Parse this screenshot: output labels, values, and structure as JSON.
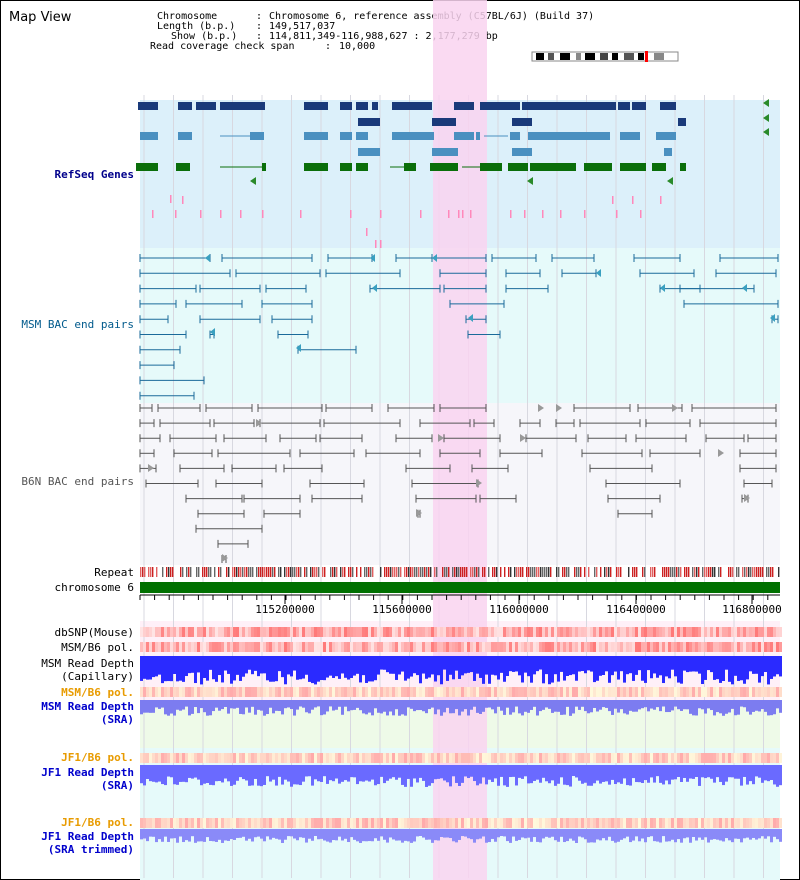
{
  "header": {
    "title": "Map View",
    "chromosome_label": "Chromosome",
    "chromosome_value": "Chromosome 6, reference assembly (C57BL/6J) (Build 37)",
    "length_label": "Length (b.p.)",
    "length_value": "149,517,037",
    "show_label": "Show (b.p.)",
    "show_value": "114,811,349-116,988,627 : 2,177,279 bp",
    "coverage_label": "Read coverage check span",
    "coverage_value": "10,000",
    "sep": ":"
  },
  "tracks": {
    "refseq": "RefSeq Genes",
    "msm_bac": "MSM BAC end pairs",
    "b6n_bac": "B6N BAC end pairs",
    "repeat": "Repeat",
    "chromosome": "chromosome 6",
    "dbsnp": "dbSNP(Mouse)",
    "msm_b6_pol_1": "MSM/B6 pol.",
    "msm_depth_cap_1": "MSM Read Depth",
    "msm_depth_cap_2": "(Capillary)",
    "msm_b6_pol_2": "MSM/B6 pol.",
    "msm_depth_sra_1": "MSM Read Depth",
    "msm_depth_sra_2": "(SRA)",
    "jf1_b6_pol_1": "JF1/B6 pol.",
    "jf1_depth_sra_1": "JF1 Read Depth",
    "jf1_depth_sra_2": "(SRA)",
    "jf1_b6_pol_2": "JF1/B6 pol.",
    "jf1_depth_trim_1": "JF1 Read Depth",
    "jf1_depth_trim_2": "(SRA trimmed)"
  },
  "axis_ticks": [
    "115200000",
    "115600000",
    "116000000",
    "116400000",
    "116800000"
  ],
  "colors": {
    "refseq_dark": "#1a3a7a",
    "refseq_mid": "#4a90c0",
    "refseq_green": "#0a6e0a",
    "msm_bac": "#1a6a9a",
    "b6n_bac": "#555555",
    "highlight": "#f9d4f0",
    "depth_blue": "#2a2aff",
    "pol_red": "#ff4040"
  }
}
